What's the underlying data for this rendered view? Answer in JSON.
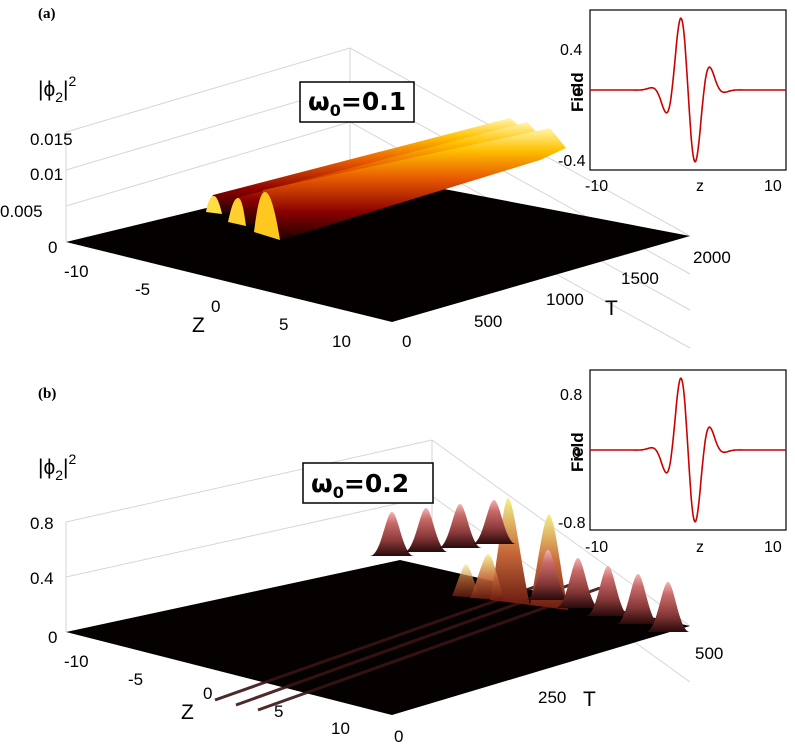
{
  "chart_data": [
    {
      "type": "surface",
      "panel_label": "(a)",
      "annotation": "ω₀=0.1",
      "annotation_parts": [
        "ω",
        "0",
        "=0.1"
      ],
      "zlabel_parts": [
        "|ϕ",
        "2",
        "|",
        "2"
      ],
      "xlabel": "Z",
      "ylabel": "T",
      "xlim": [
        -13,
        13
      ],
      "ylim": [
        0,
        2000
      ],
      "zlim": [
        0,
        0.015
      ],
      "xticks": [
        -10,
        -5,
        0,
        5,
        10
      ],
      "yticks": [
        0,
        500,
        1000,
        1500,
        2000
      ],
      "zticks": [
        0,
        0.005,
        0.01,
        0.015
      ],
      "xtick_labels": [
        "-10",
        "-5",
        "0",
        "5",
        "10"
      ],
      "ytick_labels": [
        "0",
        "500",
        "1000",
        "1500",
        "2000"
      ],
      "ztick_labels": [
        "0",
        "0.005",
        "0.01",
        "0.015"
      ],
      "ridges": [
        {
          "z": -1.6,
          "peak": 0.006
        },
        {
          "z": -0.2,
          "peak": 0.0065
        },
        {
          "z": 2.1,
          "peak": 0.01
        }
      ],
      "colormap": "hot",
      "inset": {
        "type": "line",
        "xlabel": "z",
        "ylabel": "Field",
        "xlim": [
          -12,
          12
        ],
        "ylim": [
          -0.5,
          0.5
        ],
        "xtick_labels": [
          "-10",
          "10"
        ],
        "ytick_labels": [
          "0.4",
          "0",
          "-0.4"
        ],
        "yticks": [
          0.4,
          0,
          -0.4
        ],
        "xticks": [
          -10,
          10
        ],
        "color": "#cc0000",
        "amplitude": 0.45
      }
    },
    {
      "type": "surface",
      "panel_label": "(b)",
      "annotation": "ω₀=0.2",
      "annotation_parts": [
        "ω",
        "0",
        "=0.2"
      ],
      "zlabel_parts": [
        "|ϕ",
        "2",
        "|",
        "2"
      ],
      "xlabel": "Z",
      "ylabel": "T",
      "xlim": [
        -13,
        13
      ],
      "ylim": [
        0,
        500
      ],
      "zlim": [
        0,
        0.8
      ],
      "xticks": [
        -10,
        -5,
        0,
        5,
        10
      ],
      "yticks": [
        0,
        250,
        500
      ],
      "zticks": [
        0,
        0.4,
        0.8
      ],
      "xtick_labels": [
        "-10",
        "-5",
        "0",
        "5",
        "10"
      ],
      "ytick_labels": [
        "0",
        "250",
        "500"
      ],
      "ztick_labels": [
        "0",
        "0.4",
        "0.8"
      ],
      "ridges": [
        {
          "z": -1.6,
          "peak": 0.8
        },
        {
          "z": 0.3,
          "peak": 0.78
        },
        {
          "z": 2.0,
          "peak": 0.6
        }
      ],
      "colormap": "pink",
      "inset": {
        "type": "line",
        "xlabel": "z",
        "ylabel": "Field",
        "xlim": [
          -12,
          12
        ],
        "ylim": [
          -1.0,
          1.0
        ],
        "xtick_labels": [
          "-10",
          "10"
        ],
        "ytick_labels": [
          "0.8",
          "0",
          "-0.8"
        ],
        "yticks": [
          0.8,
          0,
          -0.8
        ],
        "xticks": [
          -10,
          10
        ],
        "color": "#cc0000",
        "amplitude": 0.9
      }
    }
  ]
}
